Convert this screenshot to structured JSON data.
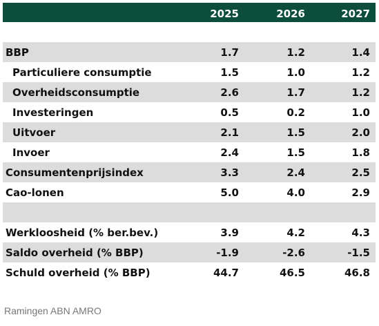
{
  "header": {
    "years": [
      "2025",
      "2026",
      "2027"
    ]
  },
  "rows": [
    {
      "label": "BBP",
      "values": [
        "1.7",
        "1.2",
        "1.4"
      ]
    },
    {
      "label": "Particuliere consumptie",
      "values": [
        "1.5",
        "1.0",
        "1.2"
      ]
    },
    {
      "label": "Overheidsconsumptie",
      "values": [
        "2.6",
        "1.7",
        "1.2"
      ]
    },
    {
      "label": "Investeringen",
      "values": [
        "0.5",
        "0.2",
        "1.0"
      ]
    },
    {
      "label": "Uitvoer",
      "values": [
        "2.1",
        "1.5",
        "2.0"
      ]
    },
    {
      "label": "Invoer",
      "values": [
        "2.4",
        "1.5",
        "1.8"
      ]
    },
    {
      "label": "Consumentenprijsindex",
      "values": [
        "3.3",
        "2.4",
        "2.5"
      ]
    },
    {
      "label": "Cao-lonen",
      "values": [
        "5.0",
        "4.0",
        "2.9"
      ]
    },
    {
      "label": "Werkloosheid (% ber.bev.)",
      "values": [
        "3.9",
        "4.2",
        "4.3"
      ]
    },
    {
      "label": "Saldo overheid (% BBP)",
      "values": [
        "-1.9",
        "-2.6",
        "-1.5"
      ]
    },
    {
      "label": "Schuld overheid (% BBP)",
      "values": [
        "44.7",
        "46.5",
        "46.8"
      ]
    }
  ],
  "source": "Ramingen ABN AMRO"
}
